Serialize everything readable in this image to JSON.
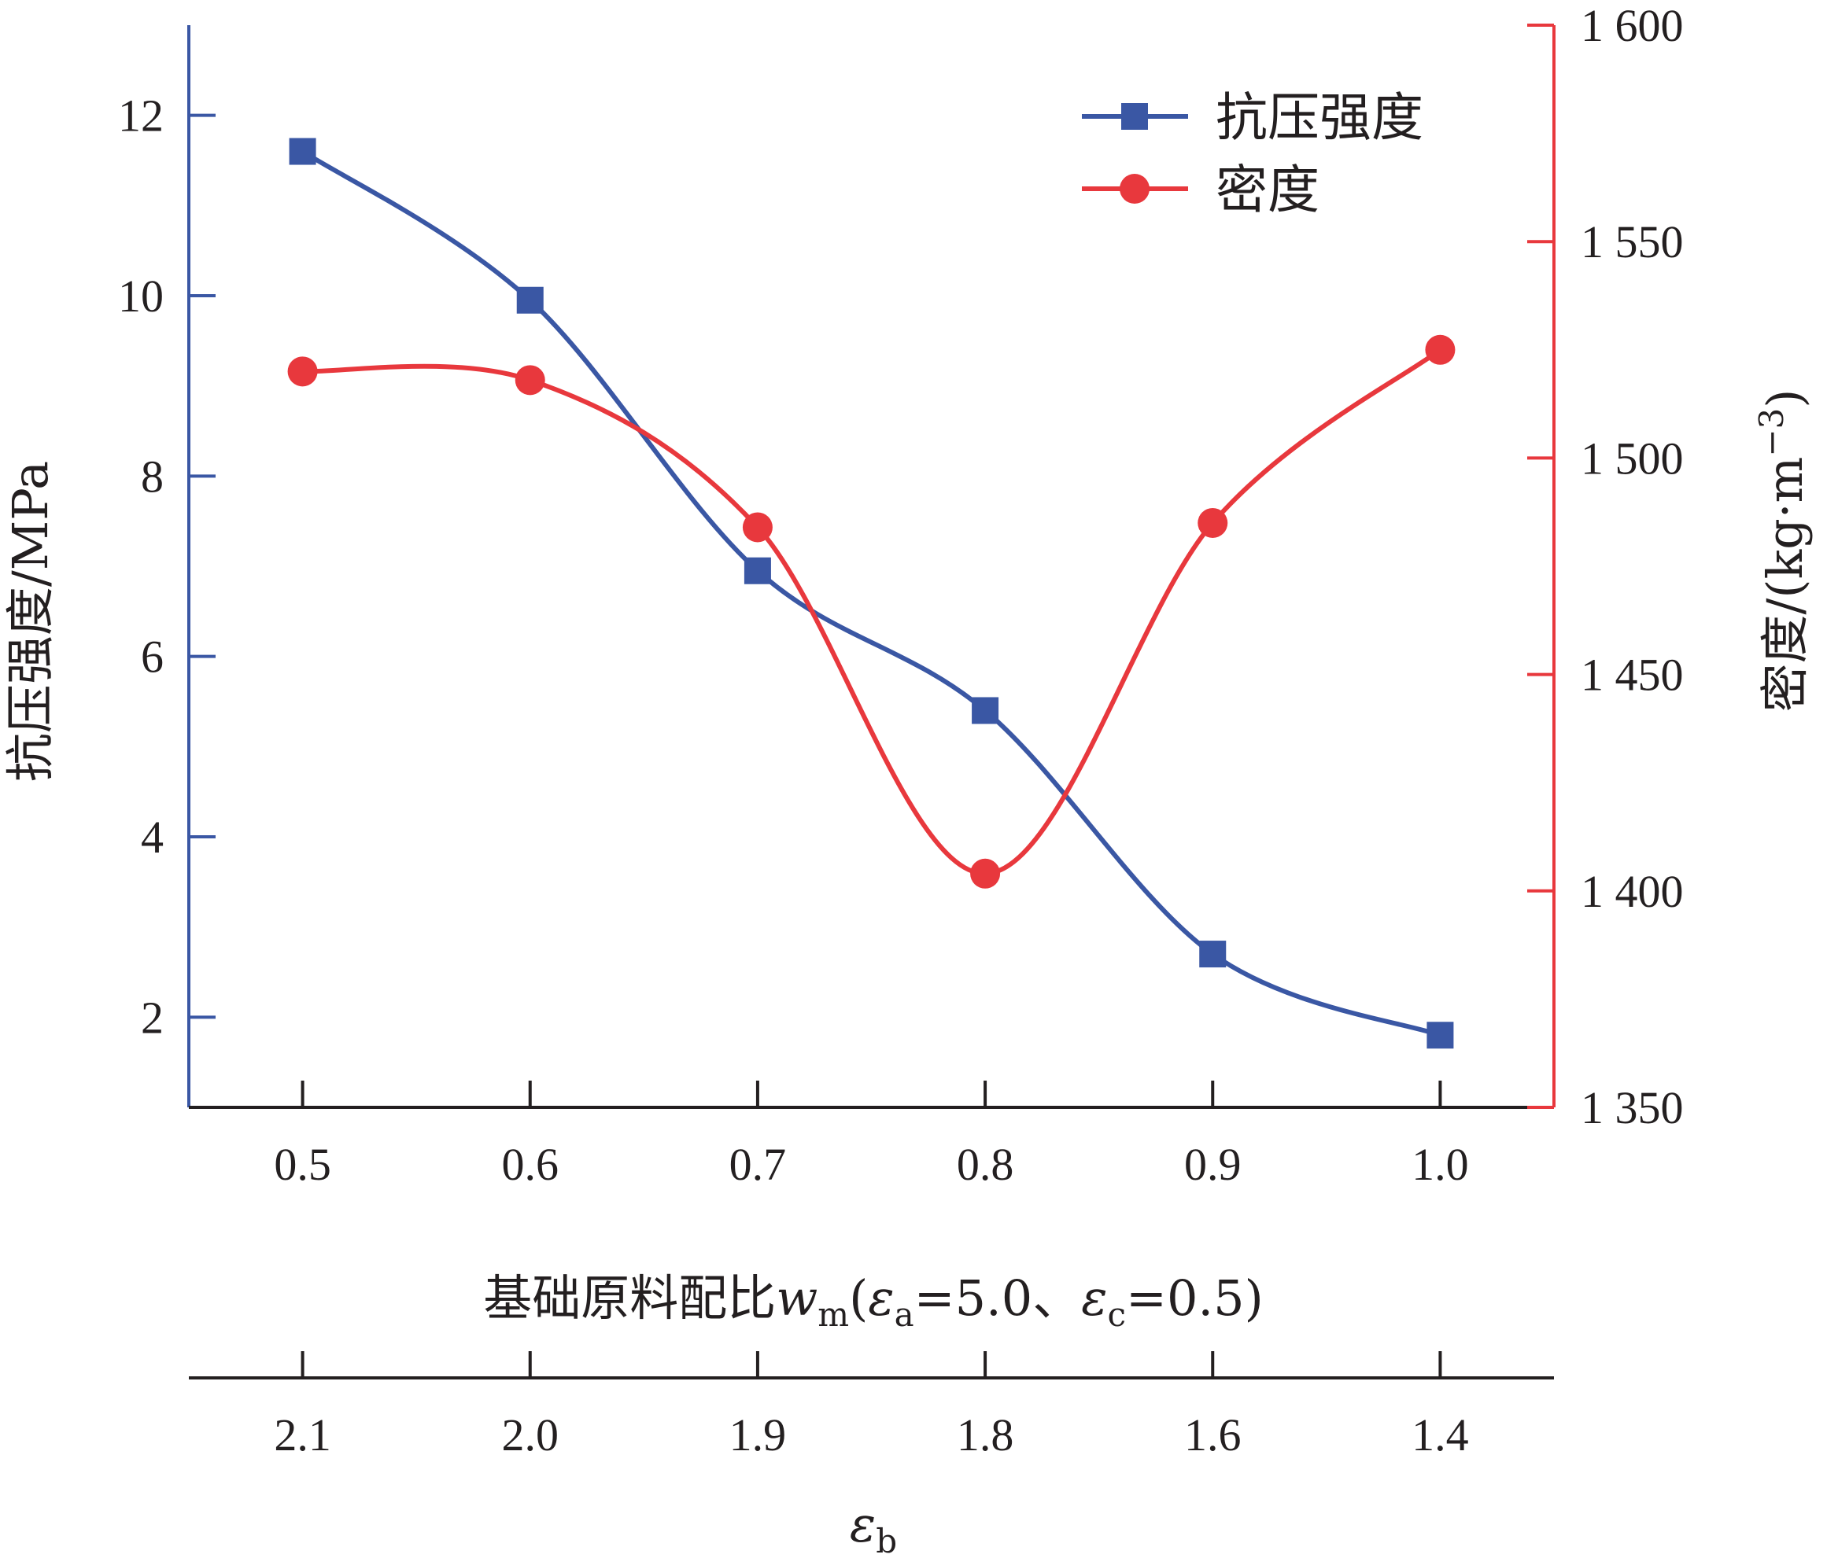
{
  "chart_data": {
    "type": "line",
    "x_label": {
      "prefix": "基础原料配比",
      "var": "w",
      "var_sub": "m",
      "paren_open": "(",
      "eps1": "ε",
      "eps1_sub": "a",
      "eps1_val": "=5.0、",
      "eps2": "ε",
      "eps2_sub": "c",
      "eps2_val": "=0.5)"
    },
    "x2_label": {
      "sym": "ε",
      "sub": "b"
    },
    "y_left_label": "抗压强度/MPa",
    "y_right_label": {
      "text": "密度/(kg·m",
      "sup": "−3",
      "close": ")"
    },
    "x": [
      0.5,
      0.6,
      0.7,
      0.8,
      0.9,
      1.0
    ],
    "x_tick_labels": [
      "0.5",
      "0.6",
      "0.7",
      "0.8",
      "0.9",
      "1.0"
    ],
    "x2_tick_labels": [
      "2.1",
      "2.0",
      "1.9",
      "1.8",
      "1.6",
      "1.4"
    ],
    "xlim": [
      0.45,
      1.05
    ],
    "y_left": {
      "ylim": [
        1,
        13
      ],
      "ticks": [
        2,
        4,
        6,
        8,
        10,
        12
      ],
      "tick_labels": [
        "2",
        "4",
        "6",
        "8",
        "10",
        "12"
      ]
    },
    "y_right": {
      "ylim": [
        1350,
        1600
      ],
      "ticks": [
        1350,
        1400,
        1450,
        1500,
        1550,
        1600
      ],
      "tick_labels": [
        "1 350",
        "1 400",
        "1 450",
        "1 500",
        "1 550",
        "1 600"
      ]
    },
    "series": [
      {
        "name": "抗压强度",
        "axis": "left",
        "marker": "square",
        "color": "#3a57a4",
        "values": [
          11.6,
          9.95,
          6.95,
          5.4,
          2.7,
          1.8
        ]
      },
      {
        "name": "密度",
        "axis": "right",
        "marker": "circle",
        "color": "#e8383d",
        "values": [
          1520,
          1518,
          1484,
          1404,
          1485,
          1525
        ]
      }
    ],
    "legend_position": "top-right",
    "colors": {
      "left_axis": "#3a57a4",
      "right_axis": "#e8383d",
      "text": "#231f20"
    }
  }
}
